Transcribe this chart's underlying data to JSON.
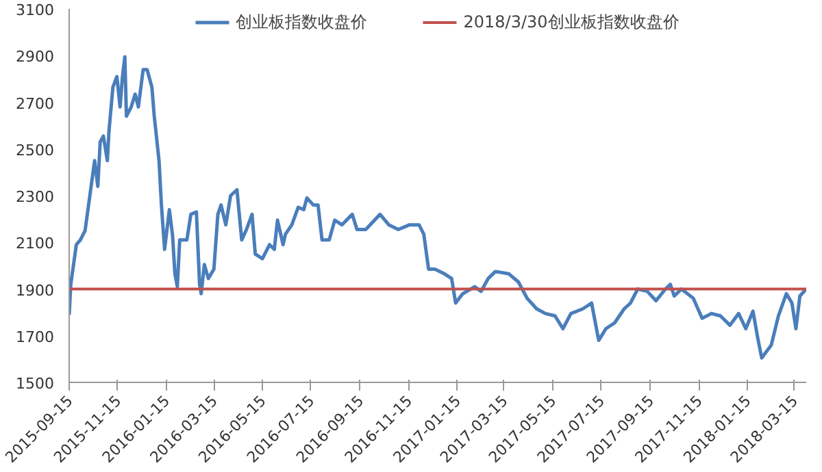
{
  "chart_data": {
    "type": "line",
    "legend": "top",
    "grid": false,
    "marker": "none",
    "line_style": "solid",
    "xlim": [
      "2015-09-15",
      "2018-03-30"
    ],
    "xticks": [
      "2015-09-15",
      "2015-11-15",
      "2016-01-15",
      "2016-03-15",
      "2016-05-15",
      "2016-07-15",
      "2016-09-15",
      "2016-11-15",
      "2017-01-15",
      "2017-03-15",
      "2017-05-15",
      "2017-07-15",
      "2017-09-15",
      "2017-11-15",
      "2018-01-15",
      "2018-03-15"
    ],
    "ylim": [
      1500,
      3100
    ],
    "yticks": [
      1500,
      1700,
      1900,
      2100,
      2300,
      2500,
      2700,
      2900,
      3100
    ],
    "ref_lines": [
      {
        "axis": "y",
        "value": 1900,
        "label": "2018/3/30创业板指数收盘价",
        "color": "#c0504d"
      }
    ],
    "series": [
      {
        "name": "创业板指数收盘价",
        "color": "#4a7ebb",
        "x": [
          "2015-09-15",
          "2015-09-17",
          "2015-09-24",
          "2015-09-29",
          "2015-10-05",
          "2015-10-11",
          "2015-10-17",
          "2015-10-21",
          "2015-10-24",
          "2015-10-28",
          "2015-11-02",
          "2015-11-04",
          "2015-11-09",
          "2015-11-14",
          "2015-11-18",
          "2015-11-21",
          "2015-11-24",
          "2015-11-26",
          "2015-12-02",
          "2015-12-07",
          "2015-12-11",
          "2015-12-17",
          "2015-12-22",
          "2015-12-28",
          "2015-12-31",
          "2016-01-06",
          "2016-01-09",
          "2016-01-13",
          "2016-01-19",
          "2016-01-23",
          "2016-01-26",
          "2016-01-29",
          "2016-02-01",
          "2016-02-10",
          "2016-02-15",
          "2016-02-22",
          "2016-02-26",
          "2016-02-28",
          "2016-03-03",
          "2016-03-08",
          "2016-03-15",
          "2016-03-20",
          "2016-03-24",
          "2016-03-30",
          "2016-04-05",
          "2016-04-13",
          "2016-04-19",
          "2016-04-25",
          "2016-05-02",
          "2016-05-06",
          "2016-05-15",
          "2016-05-24",
          "2016-05-30",
          "2016-06-03",
          "2016-06-10",
          "2016-06-13",
          "2016-06-21",
          "2016-06-29",
          "2016-07-06",
          "2016-07-10",
          "2016-07-18",
          "2016-07-24",
          "2016-07-29",
          "2016-08-07",
          "2016-08-14",
          "2016-08-23",
          "2016-09-05",
          "2016-09-11",
          "2016-09-22",
          "2016-10-10",
          "2016-10-21",
          "2016-11-02",
          "2016-11-16",
          "2016-11-28",
          "2016-12-04",
          "2016-12-10",
          "2016-12-18",
          "2016-12-30",
          "2017-01-08",
          "2017-01-13",
          "2017-01-22",
          "2017-02-06",
          "2017-02-14",
          "2017-02-23",
          "2017-03-04",
          "2017-03-21",
          "2017-04-02",
          "2017-04-13",
          "2017-04-25",
          "2017-05-06",
          "2017-05-18",
          "2017-05-28",
          "2017-06-07",
          "2017-06-22",
          "2017-07-03",
          "2017-07-12",
          "2017-07-21",
          "2017-08-01",
          "2017-08-13",
          "2017-08-21",
          "2017-08-30",
          "2017-09-11",
          "2017-09-22",
          "2017-10-04",
          "2017-10-10",
          "2017-10-15",
          "2017-10-24",
          "2017-11-08",
          "2017-11-19",
          "2017-12-01",
          "2017-12-12",
          "2017-12-24",
          "2018-01-04",
          "2018-01-13",
          "2018-01-22",
          "2018-01-28",
          "2018-02-02",
          "2018-02-14",
          "2018-02-23",
          "2018-03-05",
          "2018-03-12",
          "2018-03-17",
          "2018-03-22",
          "2018-03-30"
        ],
        "values": [
          1790,
          1920,
          2090,
          2110,
          2150,
          2300,
          2450,
          2340,
          2530,
          2555,
          2450,
          2575,
          2765,
          2810,
          2680,
          2810,
          2895,
          2640,
          2680,
          2735,
          2680,
          2840,
          2840,
          2765,
          2640,
          2450,
          2260,
          2070,
          2240,
          2130,
          1965,
          1910,
          2110,
          2110,
          2220,
          2230,
          1920,
          1880,
          2005,
          1945,
          1985,
          2220,
          2260,
          2175,
          2300,
          2325,
          2110,
          2155,
          2220,
          2050,
          2030,
          2090,
          2070,
          2195,
          2090,
          2135,
          2175,
          2250,
          2240,
          2290,
          2260,
          2260,
          2110,
          2110,
          2195,
          2175,
          2220,
          2155,
          2155,
          2220,
          2175,
          2155,
          2175,
          2175,
          2135,
          1985,
          1985,
          1965,
          1945,
          1840,
          1880,
          1910,
          1890,
          1945,
          1975,
          1965,
          1930,
          1860,
          1815,
          1795,
          1785,
          1730,
          1795,
          1815,
          1840,
          1680,
          1730,
          1755,
          1815,
          1840,
          1900,
          1890,
          1850,
          1900,
          1920,
          1870,
          1900,
          1860,
          1775,
          1795,
          1785,
          1745,
          1795,
          1730,
          1805,
          1690,
          1605,
          1660,
          1785,
          1880,
          1840,
          1730,
          1870,
          1900
        ]
      }
    ]
  }
}
